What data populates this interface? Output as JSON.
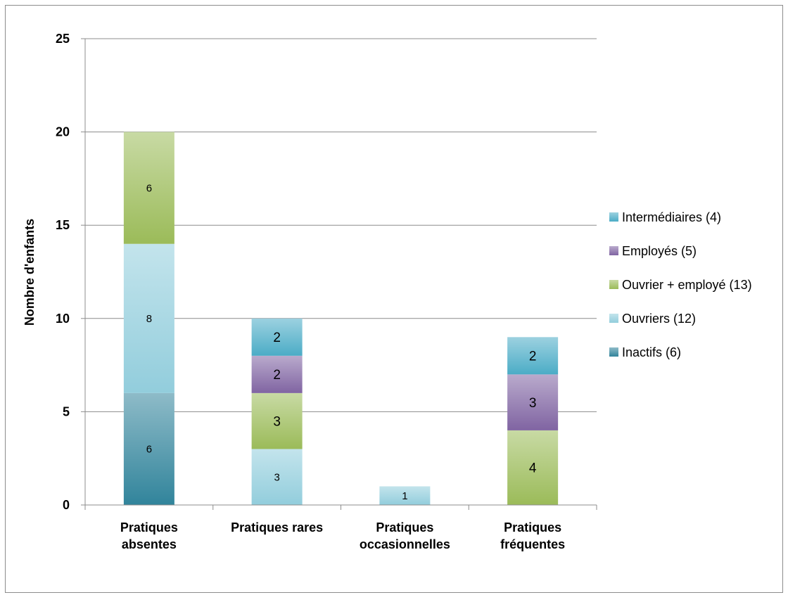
{
  "chart_data": {
    "type": "bar",
    "stacked": true,
    "title": "",
    "xlabel": "",
    "ylabel": "Nombre d'enfants",
    "ylim": [
      0,
      25
    ],
    "yticks": [
      0,
      5,
      10,
      15,
      20,
      25
    ],
    "grid": true,
    "legend_position": "right",
    "categories": [
      [
        "Pratiques",
        "absentes"
      ],
      [
        "Pratiques rares"
      ],
      [
        "Pratiques",
        "occasionnelles"
      ],
      [
        "Pratiques",
        "fréquentes"
      ]
    ],
    "series": [
      {
        "name": "Inactifs (6)",
        "color": "#31849b",
        "values": [
          6,
          0,
          0,
          0
        ]
      },
      {
        "name": " Ouvriers (12)",
        "color": "#92cddc",
        "values": [
          8,
          3,
          1,
          0
        ]
      },
      {
        "name": "Ouvrier + employé (13)",
        "color": "#9bbb59",
        "values": [
          6,
          3,
          0,
          4
        ]
      },
      {
        "name": "Employés (5)",
        "color": "#8064a2",
        "values": [
          0,
          2,
          0,
          3
        ]
      },
      {
        "name": "Intermédiaires (4)",
        "color": "#4bacc6",
        "values": [
          0,
          2,
          0,
          2
        ]
      }
    ]
  }
}
